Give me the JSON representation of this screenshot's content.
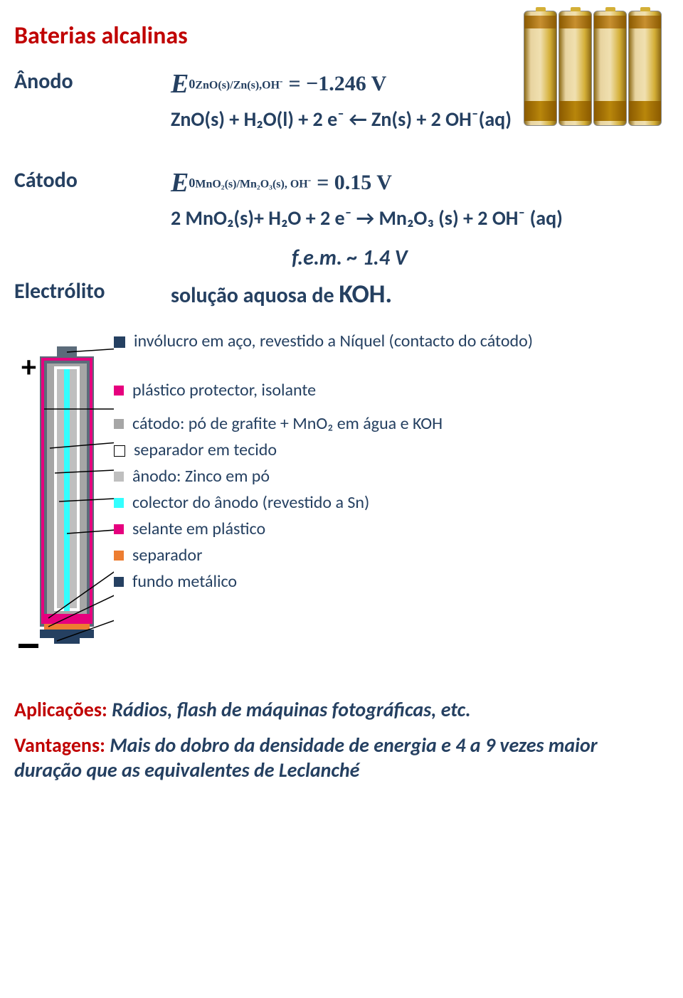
{
  "title": "Baterias alcalinas",
  "batteries_image": {
    "count": 4,
    "gradient": [
      "#e8d4a0",
      "#d4af37",
      "#8b6914"
    ],
    "top_band": "#c89030",
    "mid_band": "#f0e0b0",
    "lower_band": "#b8860b"
  },
  "anode": {
    "label": "Ânodo",
    "eq_sub": "ZnO(s)/Zn(s),OH",
    "eq_sup_minus": "-",
    "eq_value": "= −1.246 V",
    "reaction": "ZnO(s) + H₂O(l) + 2 e⁻  ←  Zn(s) + 2 OH⁻(aq)"
  },
  "cathode": {
    "label": "Cátodo",
    "eq_sub": "MnO₂(s)/Mn₂O₃(s), OH",
    "eq_sup_minus": "-",
    "eq_value": "= 0.15 V",
    "reaction": "2 MnO₂(s)+ H₂O + 2 e⁻ → Mn₂O₃ (s) + 2 OH⁻ (aq)"
  },
  "fem": "f.e.m. ~ 1.4 V",
  "electrolyte": {
    "label": "Electrólito",
    "text_prefix": "solução aquosa de ",
    "text_koh": "KOH.",
    "koh_fontsize": 36
  },
  "diagram": {
    "plus": "+",
    "minus": "−",
    "colors": {
      "steel": "#5b6b7a",
      "plastic": "#e6007e",
      "cathode": "#a6a6a6",
      "separator_fabric": "#ffffff",
      "anode_zn": "#bfbfbf",
      "collector": "#33ffff",
      "sealant": "#e6007e",
      "separator2": "#ed7d31",
      "bottom": "#254061"
    },
    "labels": [
      {
        "marker": "#254061",
        "text": "invólucro em aço, revestido a Níquel (contacto do cátodo)",
        "marker_border": "#254061"
      },
      {
        "marker": "#e6007e",
        "text": "plástico protector, isolante"
      },
      {
        "marker": "#a6a6a6",
        "text": "cátodo: pó de grafite + MnO₂ em  água e KOH"
      },
      {
        "marker": "#ffffff",
        "text": "separador em tecido",
        "marker_border": "#000"
      },
      {
        "marker": "#bfbfbf",
        "text": "ânodo: Zinco em pó"
      },
      {
        "marker": "#33ffff",
        "text": "colector do ânodo (revestido a Sn)"
      },
      {
        "marker": "#e6007e",
        "text": "selante em plástico"
      },
      {
        "marker": "#ed7d31",
        "text": "separador"
      },
      {
        "marker": "#254061",
        "text": "fundo metálico"
      }
    ]
  },
  "applications": {
    "label": "Aplicações:",
    "text": " Rádios, flash de máquinas fotográficas, etc."
  },
  "advantages": {
    "label": "Vantagens:",
    "text": " Mais do dobro da densidade de energia e 4 a 9 vezes maior duração que as equivalentes de Leclanché"
  }
}
